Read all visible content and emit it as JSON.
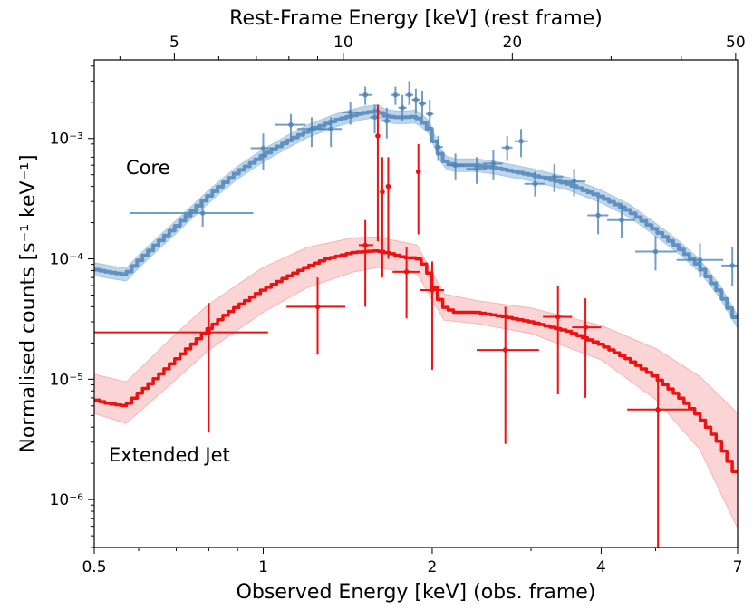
{
  "chart_data": {
    "type": "scatter",
    "xlabel": "Observed Energy [keV] (obs. frame)",
    "x2label": "Rest-Frame Energy [keV] (rest frame)",
    "ylabel": "Normalised counts [s⁻¹ keV⁻¹]",
    "xscale": "log",
    "yscale": "log",
    "xlim": [
      0.5,
      7
    ],
    "ylim": [
      4e-07,
      0.0045
    ],
    "x_ticks": [
      {
        "value": 0.5,
        "label": "0.5"
      },
      {
        "value": 1,
        "label": "1"
      },
      {
        "value": 2,
        "label": "2"
      },
      {
        "value": 4,
        "label": "4"
      },
      {
        "value": 7,
        "label": "7"
      }
    ],
    "x2_ticks": [
      {
        "value": 5,
        "label": "5"
      },
      {
        "value": 10,
        "label": "10"
      },
      {
        "value": 20,
        "label": "20"
      },
      {
        "value": 50,
        "label": "50"
      }
    ],
    "rest_frame_factor": 7.2,
    "y_ticks": [
      {
        "value": 1e-06,
        "label": "10⁻⁶"
      },
      {
        "value": 1e-05,
        "label": "10⁻⁵"
      },
      {
        "value": 0.0001,
        "label": "10⁻⁴"
      },
      {
        "value": 0.001,
        "label": "10⁻³"
      }
    ],
    "series": [
      {
        "name": "Core",
        "color": "#4f85b8",
        "band_color": "#a9c7e3",
        "model": [
          [
            0.5,
            8.2e-05
          ],
          [
            0.53,
            7.8e-05
          ],
          [
            0.57,
            7.4e-05
          ],
          [
            0.6,
            9.5e-05
          ],
          [
            0.65,
            0.000135
          ],
          [
            0.7,
            0.000185
          ],
          [
            0.75,
            0.00025
          ],
          [
            0.8,
            0.00033
          ],
          [
            0.85,
            0.00042
          ],
          [
            0.9,
            0.00052
          ],
          [
            1.0,
            0.00072
          ],
          [
            1.1,
            0.00093
          ],
          [
            1.2,
            0.00115
          ],
          [
            1.35,
            0.00142
          ],
          [
            1.5,
            0.00162
          ],
          [
            1.6,
            0.0017
          ],
          [
            1.65,
            0.00155
          ],
          [
            1.72,
            0.0015
          ],
          [
            1.8,
            0.0015
          ],
          [
            1.86,
            0.00152
          ],
          [
            1.9,
            0.00145
          ],
          [
            1.97,
            0.00125
          ],
          [
            2.02,
            0.00095
          ],
          [
            2.07,
            0.00073
          ],
          [
            2.12,
            0.00063
          ],
          [
            2.2,
            0.0006
          ],
          [
            2.4,
            0.0006
          ],
          [
            2.6,
            0.00057
          ],
          [
            3.0,
            0.0005
          ],
          [
            3.5,
            0.00042
          ],
          [
            4.0,
            0.00033
          ],
          [
            4.5,
            0.00025
          ],
          [
            5.0,
            0.000175
          ],
          [
            5.5,
            0.000125
          ],
          [
            6.0,
            8.7e-05
          ],
          [
            6.5,
            5.4e-05
          ],
          [
            7.0,
            3e-05
          ]
        ],
        "band_factor": 1.13,
        "points": [
          {
            "x": 0.78,
            "xerr": [
              0.58,
              0.96
            ],
            "y": 0.00024,
            "yerr": [
              0.000185,
              0.00029
            ]
          },
          {
            "x": 1.0,
            "xerr": [
              0.95,
              1.05
            ],
            "y": 0.00083,
            "yerr": [
              0.00055,
              0.0011
            ]
          },
          {
            "x": 1.12,
            "xerr": [
              1.05,
              1.19
            ],
            "y": 0.0013,
            "yerr": [
              0.00095,
              0.0016
            ]
          },
          {
            "x": 1.22,
            "xerr": [
              1.15,
              1.29
            ],
            "y": 0.0012,
            "yerr": [
              0.00085,
              0.0015
            ]
          },
          {
            "x": 1.32,
            "xerr": [
              1.26,
              1.38
            ],
            "y": 0.0012,
            "yerr": [
              0.00085,
              0.0015
            ]
          },
          {
            "x": 1.43,
            "xerr": [
              1.38,
              1.48
            ],
            "y": 0.00165,
            "yerr": [
              0.0013,
              0.002
            ]
          },
          {
            "x": 1.52,
            "xerr": [
              1.48,
              1.56
            ],
            "y": 0.0023,
            "yerr": [
              0.0019,
              0.0027
            ]
          },
          {
            "x": 1.58,
            "xerr": [
              1.55,
              1.61
            ],
            "y": 0.0015,
            "yerr": [
              0.0011,
              0.0019
            ]
          },
          {
            "x": 1.66,
            "xerr": [
              1.63,
              1.69
            ],
            "y": 0.0014,
            "yerr": [
              0.001,
              0.0018
            ]
          },
          {
            "x": 1.72,
            "xerr": [
              1.69,
              1.75
            ],
            "y": 0.0023,
            "yerr": [
              0.0019,
              0.0027
            ]
          },
          {
            "x": 1.77,
            "xerr": [
              1.74,
              1.8
            ],
            "y": 0.0018,
            "yerr": [
              0.0014,
              0.0023
            ]
          },
          {
            "x": 1.82,
            "xerr": [
              1.79,
              1.85
            ],
            "y": 0.0023,
            "yerr": [
              0.0019,
              0.003
            ]
          },
          {
            "x": 1.87,
            "xerr": [
              1.84,
              1.9
            ],
            "y": 0.0021,
            "yerr": [
              0.0016,
              0.0026
            ]
          },
          {
            "x": 1.92,
            "xerr": [
              1.89,
              1.95
            ],
            "y": 0.00195,
            "yerr": [
              0.0015,
              0.0025
            ]
          },
          {
            "x": 1.98,
            "xerr": [
              1.95,
              2.01
            ],
            "y": 0.0016,
            "yerr": [
              0.0012,
              0.0021
            ]
          },
          {
            "x": 2.05,
            "xerr": [
              2.02,
              2.09
            ],
            "y": 0.00085,
            "yerr": [
              0.00065,
              0.00105
            ]
          },
          {
            "x": 2.2,
            "xerr": [
              2.12,
              2.28
            ],
            "y": 0.0006,
            "yerr": [
              0.00045,
              0.00075
            ]
          },
          {
            "x": 2.4,
            "xerr": [
              2.3,
              2.5
            ],
            "y": 0.00056,
            "yerr": [
              0.00042,
              0.0007
            ]
          },
          {
            "x": 2.57,
            "xerr": [
              2.46,
              2.67
            ],
            "y": 0.00062,
            "yerr": [
              0.00045,
              0.0008
            ]
          },
          {
            "x": 2.72,
            "xerr": [
              2.66,
              2.78
            ],
            "y": 0.00084,
            "yerr": [
              0.00065,
              0.00105
            ]
          },
          {
            "x": 2.88,
            "xerr": [
              2.8,
              2.96
            ],
            "y": 0.00095,
            "yerr": [
              0.0007,
              0.0012
            ]
          },
          {
            "x": 3.05,
            "xerr": [
              2.92,
              3.18
            ],
            "y": 0.00042,
            "yerr": [
              0.00033,
              0.00053
            ]
          },
          {
            "x": 3.3,
            "xerr": [
              3.18,
              3.42
            ],
            "y": 0.00048,
            "yerr": [
              0.00036,
              0.00061
            ]
          },
          {
            "x": 3.58,
            "xerr": [
              3.42,
              3.75
            ],
            "y": 0.00044,
            "yerr": [
              0.00033,
              0.00056
            ]
          },
          {
            "x": 3.95,
            "xerr": [
              3.78,
              4.12
            ],
            "y": 0.00023,
            "yerr": [
              0.00016,
              0.00032
            ]
          },
          {
            "x": 4.35,
            "xerr": [
              4.1,
              4.6
            ],
            "y": 0.00021,
            "yerr": [
              0.00015,
              0.00029
            ]
          },
          {
            "x": 5.0,
            "xerr": [
              4.6,
              5.45
            ],
            "y": 0.000115,
            "yerr": [
              8e-05,
              0.000155
            ]
          },
          {
            "x": 6.0,
            "xerr": [
              5.45,
              6.6
            ],
            "y": 9.8e-05,
            "yerr": [
              7e-05,
              0.000135
            ]
          },
          {
            "x": 6.85,
            "xerr": [
              6.55,
              7.0
            ],
            "y": 8.8e-05,
            "yerr": [
              6e-05,
              0.000125
            ]
          }
        ]
      },
      {
        "name": "Extended Jet",
        "color": "#ee1111",
        "band_color": "#f7b3b3",
        "model": [
          [
            0.5,
            6.8e-06
          ],
          [
            0.53,
            6.3e-06
          ],
          [
            0.57,
            6e-06
          ],
          [
            0.6,
            7.5e-06
          ],
          [
            0.65,
            1.05e-05
          ],
          [
            0.7,
            1.45e-05
          ],
          [
            0.75,
            1.95e-05
          ],
          [
            0.8,
            2.6e-05
          ],
          [
            0.85,
            3.3e-05
          ],
          [
            0.9,
            4e-05
          ],
          [
            1.0,
            5.5e-05
          ],
          [
            1.1,
            7e-05
          ],
          [
            1.2,
            8.6e-05
          ],
          [
            1.3,
            0.0001
          ],
          [
            1.45,
            0.000113
          ],
          [
            1.6,
            0.000117
          ],
          [
            1.7,
            0.00011
          ],
          [
            1.8,
            0.000102
          ],
          [
            1.88,
            0.000102
          ],
          [
            1.93,
            9.2e-05
          ],
          [
            1.98,
            7.5e-05
          ],
          [
            2.02,
            5.8e-05
          ],
          [
            2.06,
            4.7e-05
          ],
          [
            2.1,
            4e-05
          ],
          [
            2.2,
            3.6e-05
          ],
          [
            2.4,
            3.6e-05
          ],
          [
            2.7,
            3.3e-05
          ],
          [
            3.0,
            3e-05
          ],
          [
            3.5,
            2.5e-05
          ],
          [
            4.0,
            1.95e-05
          ],
          [
            4.5,
            1.45e-05
          ],
          [
            5.0,
            1.05e-05
          ],
          [
            5.5,
            7.3e-06
          ],
          [
            6.0,
            4.9e-06
          ],
          [
            6.5,
            3e-06
          ],
          [
            7.0,
            1.55e-06
          ]
        ],
        "band_lower": [
          [
            0.5,
            5.2e-06
          ],
          [
            0.57,
            4.3e-06
          ],
          [
            0.7,
            1e-05
          ],
          [
            0.8,
            1.75e-05
          ],
          [
            1.0,
            3.6e-05
          ],
          [
            1.2,
            5.8e-05
          ],
          [
            1.45,
            7.8e-05
          ],
          [
            1.6,
            8.5e-05
          ],
          [
            1.88,
            7.5e-05
          ],
          [
            2.1,
            3.1e-05
          ],
          [
            2.4,
            2.9e-05
          ],
          [
            3.0,
            2.4e-05
          ],
          [
            4.0,
            1.45e-05
          ],
          [
            5.0,
            6.8e-06
          ],
          [
            6.0,
            2.6e-06
          ],
          [
            7.0,
            5.8e-07
          ]
        ],
        "band_upper": [
          [
            0.5,
            1.1e-05
          ],
          [
            0.57,
            9.5e-06
          ],
          [
            0.7,
            2.4e-05
          ],
          [
            0.8,
            4.2e-05
          ],
          [
            1.0,
            8.5e-05
          ],
          [
            1.2,
            0.000125
          ],
          [
            1.45,
            0.00015
          ],
          [
            1.6,
            0.000152
          ],
          [
            1.88,
            0.00013
          ],
          [
            2.1,
            5.1e-05
          ],
          [
            2.4,
            4.5e-05
          ],
          [
            3.0,
            3.9e-05
          ],
          [
            4.0,
            2.8e-05
          ],
          [
            5.0,
            1.8e-05
          ],
          [
            6.0,
            1.05e-05
          ],
          [
            7.0,
            5.2e-06
          ]
        ],
        "points": [
          {
            "x": 0.8,
            "xerr": [
              0.5,
              1.02
            ],
            "y": 2.45e-05,
            "yerr": [
              3.6e-06,
              4.3e-05
            ]
          },
          {
            "x": 1.25,
            "xerr": [
              1.1,
              1.4
            ],
            "y": 4e-05,
            "yerr": [
              1.6e-05,
              7e-05
            ]
          },
          {
            "x": 1.52,
            "xerr": [
              1.48,
              1.57
            ],
            "y": 0.00013,
            "yerr": [
              4e-05,
              0.00021
            ]
          },
          {
            "x": 1.6,
            "xerr": [
              1.585,
              1.615
            ],
            "y": 0.00105,
            "yerr": [
              0.00014,
              0.0019
            ]
          },
          {
            "x": 1.63,
            "xerr": [
              1.615,
              1.645
            ],
            "y": 0.00036,
            "yerr": [
              7e-05,
              0.0007
            ]
          },
          {
            "x": 1.67,
            "xerr": [
              1.655,
              1.685
            ],
            "y": 0.0004,
            "yerr": [
              0.0001,
              0.0007
            ]
          },
          {
            "x": 1.8,
            "xerr": [
              1.7,
              1.9
            ],
            "y": 7.8e-05,
            "yerr": [
              3.2e-05,
              0.000125
            ]
          },
          {
            "x": 1.89,
            "xerr": [
              1.875,
              1.905
            ],
            "y": 0.00053,
            "yerr": [
              0.00016,
              0.0009
            ]
          },
          {
            "x": 2.0,
            "xerr": [
              1.9,
              2.1
            ],
            "y": 5.5e-05,
            "yerr": [
              1.2e-05,
              9.5e-05
            ]
          },
          {
            "x": 2.7,
            "xerr": [
              2.4,
              3.1
            ],
            "y": 1.75e-05,
            "yerr": [
              2.9e-06,
              4e-05
            ]
          },
          {
            "x": 3.35,
            "xerr": [
              3.15,
              3.55
            ],
            "y": 3.3e-05,
            "yerr": [
              7.5e-06,
              6e-05
            ]
          },
          {
            "x": 3.75,
            "xerr": [
              3.55,
              4.0
            ],
            "y": 2.7e-05,
            "yerr": [
              7e-06,
              4.7e-05
            ]
          },
          {
            "x": 5.05,
            "xerr": [
              4.45,
              5.85
            ],
            "y": 5.6e-06,
            "yerr": [
              4e-07,
              1.1e-05
            ]
          }
        ]
      }
    ],
    "annotations": [
      {
        "text": "Core",
        "color": "#a9c3dc"
      },
      {
        "text": "Extended Jet",
        "color": "#ee1111"
      }
    ],
    "grid": false,
    "legend": "none"
  }
}
